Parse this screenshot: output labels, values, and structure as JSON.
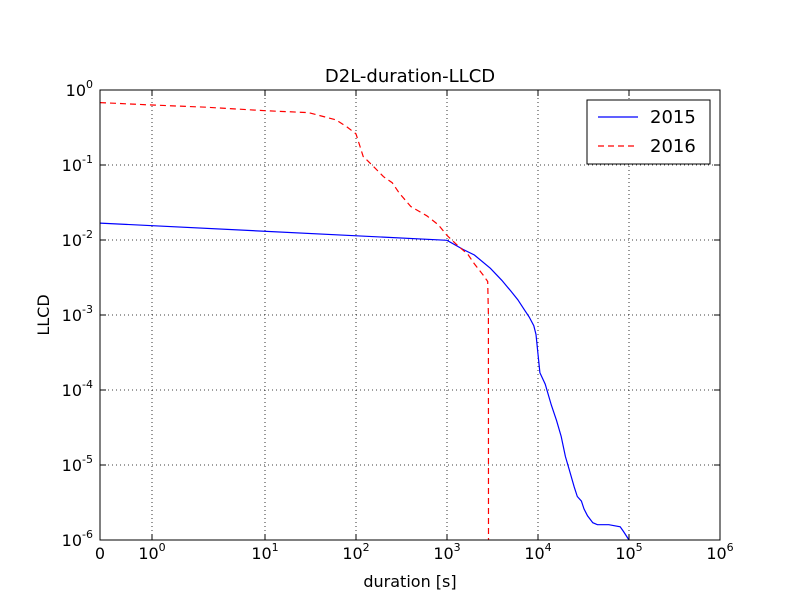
{
  "chart_data": {
    "type": "line",
    "title": "D2L-duration-LLCD",
    "xlabel": "duration [s]",
    "ylabel": "LLCD",
    "xscale": "log",
    "yscale": "log",
    "xlim": [
      0,
      1000000
    ],
    "ylim": [
      1e-06,
      1
    ],
    "grid": true,
    "legend_position": "top-right",
    "x_ticks": [
      {
        "base": "0",
        "exp": "",
        "value": 0
      },
      {
        "base": "10",
        "exp": "0",
        "value": 1
      },
      {
        "base": "10",
        "exp": "1",
        "value": 10
      },
      {
        "base": "10",
        "exp": "2",
        "value": 100
      },
      {
        "base": "10",
        "exp": "3",
        "value": 1000
      },
      {
        "base": "10",
        "exp": "4",
        "value": 10000
      },
      {
        "base": "10",
        "exp": "5",
        "value": 100000
      },
      {
        "base": "10",
        "exp": "6",
        "value": 1000000
      }
    ],
    "y_ticks": [
      {
        "base": "10",
        "exp": "0",
        "value": 1
      },
      {
        "base": "10",
        "exp": "-1",
        "value": 0.1
      },
      {
        "base": "10",
        "exp": "-2",
        "value": 0.01
      },
      {
        "base": "10",
        "exp": "-3",
        "value": 0.001
      },
      {
        "base": "10",
        "exp": "-4",
        "value": 0.0001
      },
      {
        "base": "10",
        "exp": "-5",
        "value": 1e-05
      },
      {
        "base": "10",
        "exp": "-6",
        "value": 1e-06
      }
    ],
    "series": [
      {
        "name": "2015",
        "color": "#0000ff",
        "style": "solid",
        "points": [
          [
            0,
            0.0168
          ],
          [
            1000,
            0.0099
          ],
          [
            1500,
            0.0075
          ],
          [
            2000,
            0.0063
          ],
          [
            3000,
            0.0042
          ],
          [
            4000,
            0.0029
          ],
          [
            5000,
            0.0021
          ],
          [
            6000,
            0.0016
          ],
          [
            7000,
            0.0012
          ],
          [
            8000,
            0.00094
          ],
          [
            9000,
            0.00072
          ],
          [
            9500,
            0.00055
          ],
          [
            10000,
            0.0003
          ],
          [
            10500,
            0.00017
          ],
          [
            12000,
            0.00012
          ],
          [
            14000,
            6.3e-05
          ],
          [
            16000,
            3.9e-05
          ],
          [
            18000,
            2.4e-05
          ],
          [
            20000,
            1.3e-05
          ],
          [
            22000,
            8.7e-06
          ],
          [
            25000,
            5.1e-06
          ],
          [
            27000,
            3.8e-06
          ],
          [
            30000,
            3.3e-06
          ],
          [
            32000,
            2.6e-06
          ],
          [
            35000,
            2.1e-06
          ],
          [
            40000,
            1.7e-06
          ],
          [
            45000,
            1.6e-06
          ],
          [
            60000,
            1.6e-06
          ],
          [
            80000,
            1.5e-06
          ],
          [
            87000,
            1.3e-06
          ],
          [
            100000,
            1e-06
          ]
        ]
      },
      {
        "name": "2016",
        "color": "#ff0000",
        "style": "dashed",
        "points": [
          [
            0,
            0.68
          ],
          [
            1,
            0.63
          ],
          [
            3,
            0.59
          ],
          [
            10,
            0.53
          ],
          [
            30,
            0.5
          ],
          [
            60,
            0.4
          ],
          [
            80,
            0.32
          ],
          [
            100,
            0.26
          ],
          [
            120,
            0.13
          ],
          [
            150,
            0.1
          ],
          [
            200,
            0.07
          ],
          [
            250,
            0.058
          ],
          [
            300,
            0.042
          ],
          [
            400,
            0.028
          ],
          [
            600,
            0.021
          ],
          [
            800,
            0.016
          ],
          [
            1000,
            0.0115
          ],
          [
            1300,
            0.0085
          ],
          [
            1700,
            0.0064
          ],
          [
            2000,
            0.0048
          ],
          [
            2500,
            0.0034
          ],
          [
            2800,
            0.0028
          ],
          [
            2850,
            0.001
          ],
          [
            2860,
            1e-06
          ]
        ]
      }
    ]
  }
}
